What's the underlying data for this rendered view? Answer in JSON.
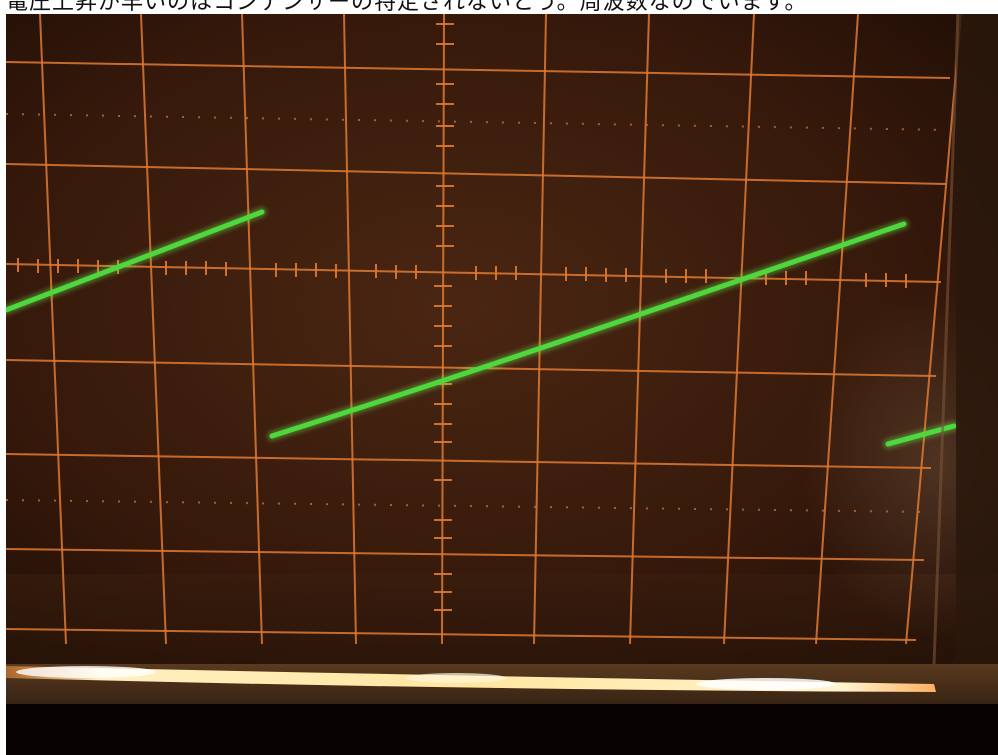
{
  "caption": {
    "text": "電圧上昇が早いのはコンデンサーの特定されないとう。周波数なのでいます。"
  },
  "scene": {
    "subject": "oscilloscope-screen",
    "trace_shape": "sawtooth",
    "trace_color": "#4fd83e",
    "graticule_color": "#e07a32",
    "screen_color": "#3a1d0e",
    "glare_color": "#ffd27a"
  }
}
